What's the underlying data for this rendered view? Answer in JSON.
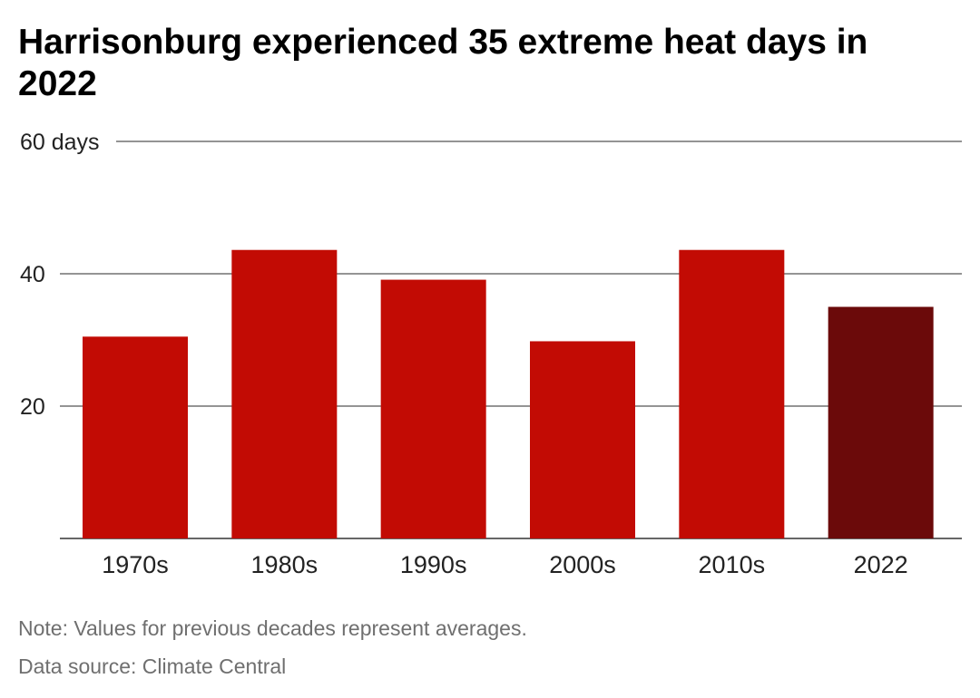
{
  "title": "Harrisonburg experienced 35 extreme heat days in 2022",
  "note": "Note: Values for previous decades represent averages.",
  "source": "Data source: Climate Central",
  "colors": {
    "bar": "#c20b04",
    "highlight": "#6b0a0a",
    "grid": "#333333",
    "text": "#222222"
  },
  "chart_data": {
    "type": "bar",
    "title": "Harrisonburg experienced 35 extreme heat days in 2022",
    "categories": [
      "1970s",
      "1980s",
      "1990s",
      "2000s",
      "2010s",
      "2022"
    ],
    "values": [
      30.5,
      43.6,
      39.1,
      29.8,
      43.6,
      35
    ],
    "highlight": "2022",
    "ylim": [
      0,
      60
    ],
    "yticks": [
      20,
      40,
      60
    ],
    "ytick_labels": [
      "20",
      "40",
      "60 days"
    ],
    "grid": true,
    "xlabel": "",
    "ylabel": ""
  }
}
